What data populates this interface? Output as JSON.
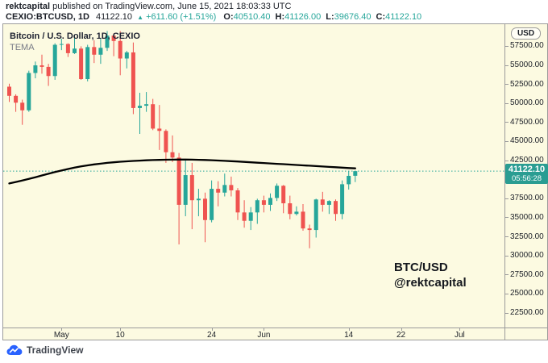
{
  "attribution": {
    "author": "rektcapital",
    "rest": " published on TradingView.com, June 15, 2021 18:03:33 UTC"
  },
  "symbol_bar": {
    "symbol": "CEXIO:BTCUSD, 1D",
    "last": "41122.10",
    "direction_icon": "▲",
    "change": "+611.60 (+1.51%)",
    "fields": [
      {
        "label": "O:",
        "value": "40510.40"
      },
      {
        "label": "H:",
        "value": "41126.00"
      },
      {
        "label": "L:",
        "value": "39676.40"
      },
      {
        "label": "C:",
        "value": "41122.10"
      }
    ]
  },
  "legend": {
    "title": "Bitcoin / U.S. Dollar, 1D, CEXIO",
    "indicator": "TEMA"
  },
  "watermark": {
    "line1": "BTC/USD",
    "line2": "@rektcapital"
  },
  "price_axis": {
    "currency": "USD",
    "ticks": [
      "57500.00",
      "55000.00",
      "52500.00",
      "50000.00",
      "47500.00",
      "45000.00",
      "42500.00",
      "37500.00",
      "35000.00",
      "32500.00",
      "30000.00",
      "27500.00",
      "25000.00",
      "22500.00"
    ],
    "badge": {
      "price": "41122.10",
      "countdown": "05:56:28"
    }
  },
  "time_axis": {
    "ticks": [
      {
        "label": "May",
        "day": 8
      },
      {
        "label": "10",
        "day": 17
      },
      {
        "label": "24",
        "day": 31
      },
      {
        "label": "Jun",
        "day": 39
      },
      {
        "label": "14",
        "day": 52
      },
      {
        "label": "22",
        "day": 60
      },
      {
        "label": "Jul",
        "day": 69
      }
    ]
  },
  "footer": {
    "brand": "TradingView"
  },
  "colors": {
    "up": "#26a69a",
    "down": "#ef5350",
    "tema_line": "#000000",
    "chart_bg": "#fcfae1",
    "badge_bg": "#2a9d92",
    "border": "#9b9b9b",
    "logo_blue": "#2962ff"
  },
  "chart_data": {
    "type": "candlestick",
    "title": "Bitcoin / U.S. Dollar, 1D, CEXIO",
    "indicator": "TEMA (black overlay line)",
    "date_range": "Apr 23, 2021 - Jun 15, 2021",
    "price_unit": "USD thousands",
    "ylim_k": [
      20.6,
      60.4
    ],
    "last_price": 41122.1,
    "current_price_line_k": 41.122,
    "columns": [
      "date",
      "open_k",
      "high_k",
      "low_k",
      "close_k"
    ],
    "candles": [
      [
        "Apr 23",
        52.2,
        52.6,
        50.2,
        51.0
      ],
      [
        "Apr 24",
        51.0,
        51.2,
        48.9,
        50.1
      ],
      [
        "Apr 25",
        50.1,
        50.5,
        47.2,
        49.1
      ],
      [
        "Apr 26",
        49.1,
        54.3,
        48.9,
        54.0
      ],
      [
        "Apr 27",
        54.0,
        55.5,
        53.3,
        55.0
      ],
      [
        "Apr 28",
        55.0,
        56.4,
        53.9,
        54.8
      ],
      [
        "Apr 29",
        54.8,
        55.2,
        52.3,
        53.6
      ],
      [
        "Apr 30",
        53.6,
        57.9,
        53.1,
        57.7
      ],
      [
        "May 1",
        57.7,
        58.5,
        57.0,
        57.8
      ],
      [
        "May 2",
        57.8,
        57.9,
        56.1,
        56.6
      ],
      [
        "May 3",
        56.6,
        58.9,
        56.5,
        57.2
      ],
      [
        "May 4",
        57.2,
        57.5,
        53.1,
        53.2
      ],
      [
        "May 5",
        53.2,
        57.7,
        52.9,
        57.4
      ],
      [
        "May 6",
        57.4,
        58.3,
        55.3,
        56.4
      ],
      [
        "May 7",
        56.4,
        58.6,
        55.2,
        57.3
      ],
      [
        "May 8",
        57.3,
        59.5,
        56.9,
        58.9
      ],
      [
        "May 9",
        58.9,
        59.2,
        56.2,
        58.2
      ],
      [
        "May 10",
        58.2,
        59.5,
        53.7,
        55.9
      ],
      [
        "May 11",
        55.9,
        56.9,
        54.6,
        56.7
      ],
      [
        "May 12",
        56.7,
        58.0,
        48.6,
        49.4
      ],
      [
        "May 13",
        49.4,
        51.4,
        46.0,
        49.7
      ],
      [
        "May 14",
        49.7,
        51.5,
        48.9,
        49.9
      ],
      [
        "May 15",
        49.9,
        50.6,
        46.5,
        46.7
      ],
      [
        "May 16",
        46.7,
        49.8,
        43.9,
        46.4
      ],
      [
        "May 17",
        46.4,
        46.6,
        42.2,
        43.6
      ],
      [
        "May 18",
        43.6,
        45.8,
        42.3,
        42.9
      ],
      [
        "May 19",
        42.9,
        43.5,
        31.5,
        36.7
      ],
      [
        "May 20",
        36.7,
        42.5,
        35.2,
        40.6
      ],
      [
        "May 21",
        40.6,
        42.2,
        33.5,
        37.3
      ],
      [
        "May 22",
        37.3,
        38.8,
        35.2,
        37.5
      ],
      [
        "May 23",
        37.5,
        38.3,
        31.8,
        34.7
      ],
      [
        "May 24",
        34.7,
        39.9,
        34.4,
        38.8
      ],
      [
        "May 25",
        38.8,
        39.8,
        36.5,
        38.3
      ],
      [
        "May 26",
        38.3,
        40.8,
        37.8,
        39.3
      ],
      [
        "May 27",
        39.3,
        40.4,
        37.8,
        38.6
      ],
      [
        "May 28",
        38.6,
        38.9,
        34.7,
        35.7
      ],
      [
        "May 29",
        35.7,
        37.3,
        33.7,
        34.6
      ],
      [
        "May 30",
        34.6,
        36.4,
        33.4,
        35.7
      ],
      [
        "May 31",
        35.7,
        37.5,
        34.2,
        37.3
      ],
      [
        "Jun 1",
        37.3,
        37.9,
        35.7,
        36.7
      ],
      [
        "Jun 2",
        36.7,
        38.2,
        35.9,
        37.6
      ],
      [
        "Jun 3",
        37.6,
        39.5,
        37.2,
        39.2
      ],
      [
        "Jun 4",
        39.2,
        39.3,
        35.6,
        36.9
      ],
      [
        "Jun 5",
        36.9,
        37.9,
        34.8,
        35.5
      ],
      [
        "Jun 6",
        35.5,
        36.5,
        35.3,
        35.8
      ],
      [
        "Jun 7",
        35.8,
        36.8,
        33.3,
        33.6
      ],
      [
        "Jun 8",
        33.6,
        34.1,
        31.0,
        33.4
      ],
      [
        "Jun 9",
        33.4,
        37.5,
        32.4,
        37.4
      ],
      [
        "Jun 10",
        37.4,
        38.4,
        35.8,
        36.7
      ],
      [
        "Jun 11",
        36.7,
        37.3,
        35.5,
        37.2
      ],
      [
        "Jun 12",
        37.2,
        37.4,
        34.6,
        35.5
      ],
      [
        "Jun 13",
        35.5,
        39.9,
        34.8,
        39.4
      ],
      [
        "Jun 14",
        39.4,
        41.1,
        38.7,
        40.5
      ],
      [
        "Jun 15",
        40.51,
        41.13,
        39.68,
        41.12
      ]
    ],
    "tema_k": [
      39.5,
      39.7,
      39.9,
      40.1,
      40.32,
      40.55,
      40.78,
      41.0,
      41.2,
      41.4,
      41.58,
      41.74,
      41.88,
      42.0,
      42.1,
      42.2,
      42.28,
      42.35,
      42.41,
      42.46,
      42.5,
      42.54,
      42.57,
      42.6,
      42.62,
      42.63,
      42.64,
      42.64,
      42.63,
      42.61,
      42.58,
      42.55,
      42.51,
      42.47,
      42.43,
      42.38,
      42.33,
      42.28,
      42.23,
      42.18,
      42.13,
      42.08,
      42.03,
      41.98,
      41.93,
      41.88,
      41.83,
      41.78,
      41.73,
      41.68,
      41.63,
      41.58,
      41.53,
      41.48
    ]
  }
}
